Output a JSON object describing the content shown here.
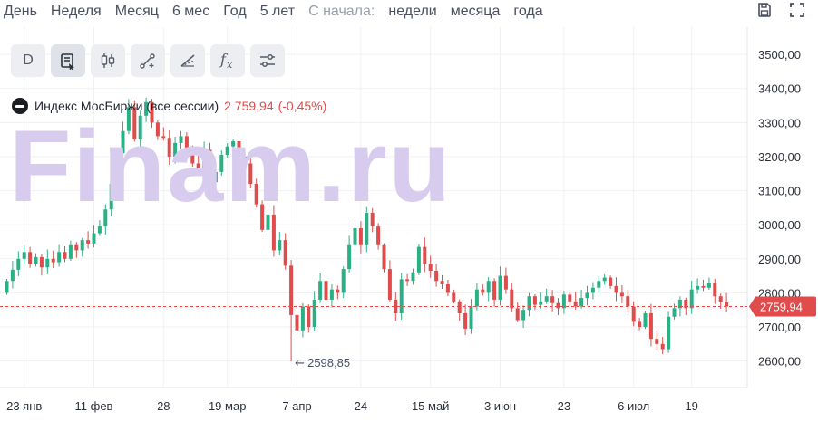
{
  "range_bar": {
    "items": [
      "День",
      "Неделя",
      "Месяц",
      "6 мес",
      "Год",
      "5 лет"
    ],
    "since_label": "С начала:",
    "since_items": [
      "недели",
      "месяца",
      "года"
    ]
  },
  "icons": {
    "save": "save-icon",
    "fullscreen": "fullscreen-icon",
    "toolbar": [
      "period-D",
      "indicator-list-icon",
      "candlestick-icon",
      "drawing-line-icon",
      "trendline-tool-icon",
      "function-icon",
      "settings-sliders-icon"
    ]
  },
  "toolbar": {
    "period_label": "D",
    "fx_label": "fx"
  },
  "legend": {
    "name": "Индекс МосБиржи (все сессии)",
    "price": "2 759,94",
    "change": "(-0,45%)"
  },
  "watermark": "Finam.ru",
  "colors": {
    "up": "#2bb086",
    "down": "#e04b4b",
    "current_price_line": "#e04b4b",
    "watermark": "#d8ccee"
  },
  "chart_data": {
    "type": "candlestick",
    "title": "Индекс МосБиржи (все сессии)",
    "y_ticks": [
      "3500,00",
      "3400,00",
      "3300,00",
      "3200,00",
      "3100,00",
      "3000,00",
      "2900,00",
      "2800,00",
      "2700,00",
      "2600,00"
    ],
    "y_tick_values": [
      3500,
      3400,
      3300,
      3200,
      3100,
      3000,
      2900,
      2800,
      2700,
      2600
    ],
    "ylim": [
      2522,
      3580
    ],
    "x_ticks": [
      "23 янв",
      "11 фев",
      "28",
      "19 мар",
      "7 апр",
      "24",
      "15 май",
      "3 июн",
      "23",
      "6 июл",
      "19"
    ],
    "x_tick_indices": [
      3,
      15,
      27,
      38,
      50,
      61,
      73,
      85,
      96,
      108,
      118
    ],
    "last_price": 2759.94,
    "last_price_label": "2759,94",
    "min_label": "2598,85",
    "min_value": 2598.85,
    "min_index": 49,
    "closes": [
      2835,
      2868,
      2900,
      2920,
      2885,
      2905,
      2875,
      2900,
      2890,
      2920,
      2900,
      2940,
      2925,
      2955,
      2945,
      2975,
      2995,
      3045,
      3120,
      3210,
      3275,
      3345,
      3250,
      3320,
      3360,
      3300,
      3260,
      3255,
      3200,
      3240,
      3260,
      3225,
      3180,
      3160,
      3220,
      3125,
      3155,
      3205,
      3230,
      3245,
      3200,
      3180,
      3120,
      3060,
      2985,
      3030,
      2925,
      2955,
      2880,
      2735,
      2690,
      2760,
      2700,
      2780,
      2835,
      2780,
      2810,
      2800,
      2870,
      2940,
      2990,
      2940,
      3035,
      2995,
      2940,
      2870,
      2780,
      2740,
      2840,
      2835,
      2860,
      2935,
      2885,
      2865,
      2835,
      2825,
      2800,
      2775,
      2740,
      2695,
      2760,
      2810,
      2800,
      2835,
      2780,
      2850,
      2810,
      2755,
      2720,
      2750,
      2790,
      2765,
      2775,
      2790,
      2770,
      2755,
      2795,
      2775,
      2760,
      2785,
      2800,
      2815,
      2835,
      2845,
      2820,
      2800,
      2790,
      2760,
      2715,
      2700,
      2740,
      2665,
      2650,
      2635,
      2730,
      2755,
      2780,
      2755,
      2810,
      2820,
      2815,
      2830,
      2790,
      2772,
      2760
    ],
    "opens": [
      2800,
      2835,
      2868,
      2900,
      2920,
      2885,
      2905,
      2875,
      2900,
      2890,
      2920,
      2900,
      2940,
      2925,
      2955,
      2945,
      2975,
      2995,
      3045,
      3120,
      3210,
      3275,
      3345,
      3250,
      3320,
      3360,
      3300,
      3260,
      3255,
      3200,
      3240,
      3260,
      3225,
      3180,
      3160,
      3220,
      3125,
      3155,
      3205,
      3230,
      3245,
      3200,
      3180,
      3120,
      3060,
      2985,
      3030,
      2925,
      2955,
      2880,
      2735,
      2690,
      2760,
      2700,
      2780,
      2835,
      2780,
      2810,
      2800,
      2870,
      2940,
      2990,
      2940,
      3035,
      2995,
      2940,
      2870,
      2780,
      2740,
      2840,
      2835,
      2860,
      2935,
      2885,
      2865,
      2835,
      2825,
      2800,
      2775,
      2740,
      2695,
      2760,
      2810,
      2800,
      2835,
      2780,
      2850,
      2810,
      2755,
      2720,
      2750,
      2790,
      2765,
      2775,
      2790,
      2770,
      2755,
      2795,
      2775,
      2760,
      2785,
      2800,
      2815,
      2835,
      2845,
      2820,
      2800,
      2790,
      2760,
      2715,
      2700,
      2740,
      2665,
      2650,
      2635,
      2730,
      2755,
      2780,
      2755,
      2810,
      2820,
      2815,
      2830,
      2790,
      2772
    ]
  }
}
